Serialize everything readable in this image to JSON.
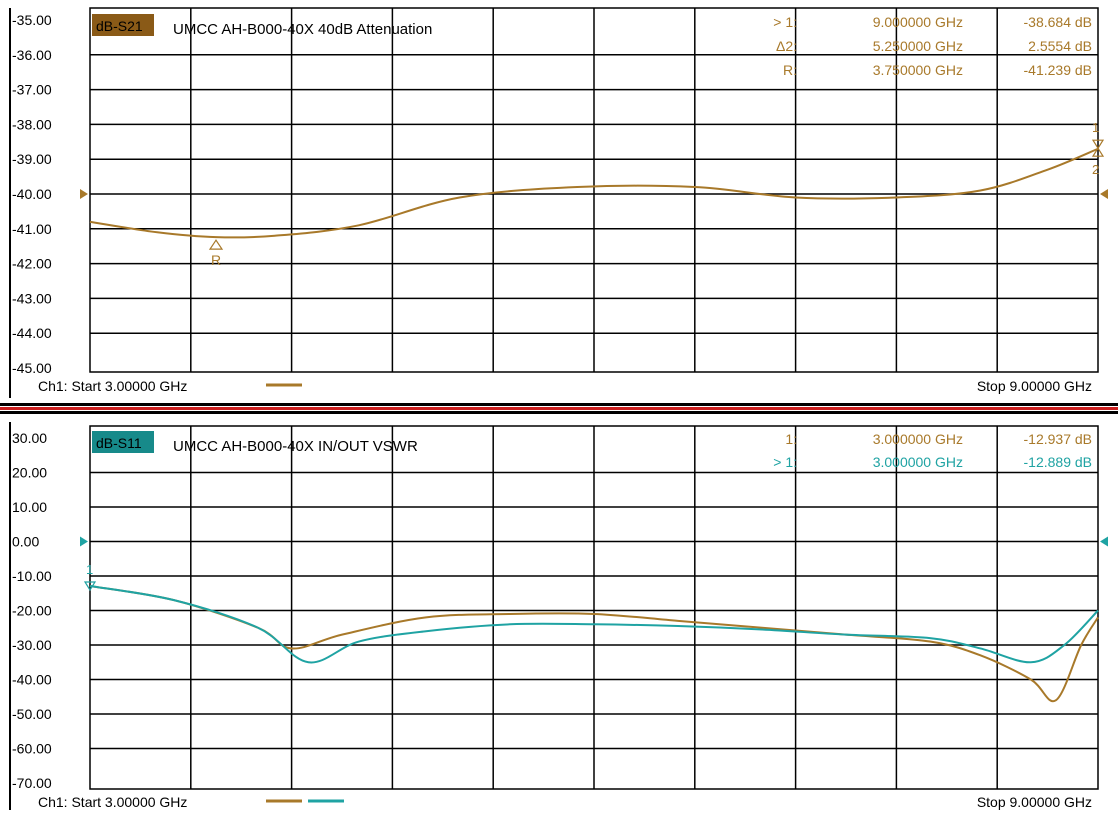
{
  "colors": {
    "trace_brown": "#a8792a",
    "trace_teal": "#1fa3a3",
    "label_bg_brown": "#8a5a17",
    "label_bg_teal": "#178a8a",
    "grid": "#000000",
    "divider_red": "#cc1f1f"
  },
  "chart_data": [
    {
      "type": "line",
      "channel_label": "dB-S21",
      "title": "UMCC  AH-B000-40X  40dB Attenuation",
      "x_start_label": "Ch1: Start  3.00000 GHz",
      "x_stop_label": "Stop  9.00000 GHz",
      "xlim": [
        3.0,
        9.0
      ],
      "ylim": [
        -45,
        -35
      ],
      "yticks": [
        "-35.00",
        "-36.00",
        "-37.00",
        "-38.00",
        "-39.00",
        "-40.00",
        "-41.00",
        "-42.00",
        "-43.00",
        "-44.00",
        "-45.00"
      ],
      "grid": true,
      "reference_level": -40.0,
      "series": [
        {
          "color": "trace_brown",
          "x": [
            3.0,
            3.4,
            3.75,
            4.1,
            4.6,
            5.2,
            5.9,
            6.6,
            7.2,
            7.8,
            8.3,
            8.7,
            9.0
          ],
          "y": [
            -40.8,
            -41.1,
            -41.24,
            -41.2,
            -40.9,
            -40.1,
            -39.8,
            -39.8,
            -40.1,
            -40.1,
            -39.9,
            -39.3,
            -38.7
          ]
        }
      ],
      "markers": [
        {
          "label": "R",
          "x": 3.75,
          "y": -41.24
        },
        {
          "label": "1",
          "x": 9.0,
          "y": -38.684
        },
        {
          "label": "2",
          "x": 9.0,
          "y": -38.684
        }
      ],
      "marker_readouts": [
        {
          "name": "> 1:",
          "freq": "9.000000 GHz",
          "value": "-38.684 dB",
          "color": "trace_brown"
        },
        {
          "name": "Δ2:",
          "freq": "5.250000 GHz",
          "value": "2.5554 dB",
          "color": "trace_brown"
        },
        {
          "name": "R:",
          "freq": "3.750000 GHz",
          "value": "-41.239 dB",
          "color": "trace_brown"
        }
      ]
    },
    {
      "type": "line",
      "channel_label": "dB-S11",
      "title": "UMCC  AH-B000-40X  IN/OUT VSWR",
      "x_start_label": "Ch1: Start  3.00000 GHz",
      "x_stop_label": "Stop  9.00000 GHz",
      "xlim": [
        3.0,
        9.0
      ],
      "ylim": [
        -70,
        30
      ],
      "yticks": [
        "30.00",
        "20.00",
        "10.00",
        "0.00",
        "-10.00",
        "-20.00",
        "-30.00",
        "-40.00",
        "-50.00",
        "-60.00",
        "-70.00"
      ],
      "grid": true,
      "reference_level": 0.0,
      "series": [
        {
          "color": "trace_brown",
          "x": [
            3.0,
            3.5,
            4.0,
            4.2,
            4.5,
            5.0,
            5.5,
            6.0,
            6.5,
            7.0,
            7.5,
            8.0,
            8.3,
            8.6,
            8.75,
            8.9,
            9.0
          ],
          "y": [
            -12.9,
            -17.0,
            -25.0,
            -31.0,
            -27.0,
            -22.0,
            -21.0,
            -21.0,
            -23.0,
            -25.0,
            -27.0,
            -29.0,
            -33.0,
            -40.0,
            -46.0,
            -30.0,
            -22.0
          ]
        },
        {
          "color": "trace_teal",
          "x": [
            3.0,
            3.5,
            4.0,
            4.3,
            4.6,
            5.0,
            5.5,
            6.0,
            6.5,
            7.0,
            7.5,
            8.0,
            8.3,
            8.6,
            8.8,
            9.0
          ],
          "y": [
            -12.9,
            -17.0,
            -25.0,
            -35.0,
            -29.0,
            -26.0,
            -24.0,
            -24.0,
            -24.5,
            -25.5,
            -27.0,
            -28.0,
            -31.0,
            -35.0,
            -30.0,
            -20.0
          ]
        }
      ],
      "markers": [
        {
          "label": "1",
          "x": 3.0,
          "y": -12.9
        }
      ],
      "marker_readouts": [
        {
          "name": "1:",
          "freq": "3.000000 GHz",
          "value": "-12.937 dB",
          "color": "trace_brown"
        },
        {
          "name": "> 1:",
          "freq": "3.000000 GHz",
          "value": "-12.889 dB",
          "color": "trace_teal"
        }
      ]
    }
  ]
}
